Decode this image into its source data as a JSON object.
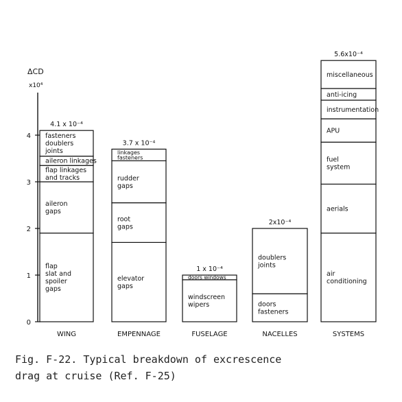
{
  "chart_data": {
    "type": "bar",
    "stacked": true,
    "ylabel": "ΔCD",
    "yunit": "x10⁴",
    "ylim": [
      0,
      6.0
    ],
    "yticks": [
      "0",
      "1",
      "2",
      "3",
      "4"
    ],
    "yticks_values": [
      0,
      1,
      2,
      3,
      4
    ],
    "categories": [
      "WING",
      "EMPENNAGE",
      "FUSELAGE",
      "NACELLES",
      "SYSTEMS"
    ],
    "totals": [
      "4.1 x 10⁻⁴",
      "3.7 x 10⁻⁴",
      "1 x 10⁻⁴",
      "2x10⁻⁴",
      "5.6x10⁻⁴"
    ],
    "bars": [
      {
        "category": "WING",
        "segments": [
          {
            "label": [
              "flap",
              "slat and",
              "spoiler",
              "gaps"
            ],
            "value": 1.9
          },
          {
            "label": [
              "aileron",
              "gaps"
            ],
            "value": 1.1
          },
          {
            "label": [
              "flap linkages",
              "and tracks"
            ],
            "value": 0.35
          },
          {
            "label": [
              "aileron linkages"
            ],
            "value": 0.2
          },
          {
            "label": [
              "fasteners",
              "doublers",
              "joints"
            ],
            "value": 0.55
          }
        ]
      },
      {
        "category": "EMPENNAGE",
        "segments": [
          {
            "label": [
              "elevator",
              "gaps"
            ],
            "value": 1.7
          },
          {
            "label": [
              "root",
              "gaps"
            ],
            "value": 0.85
          },
          {
            "label": [
              "rudder",
              "gaps"
            ],
            "value": 0.9
          },
          {
            "label": [
              "linkages",
              "fasteners"
            ],
            "value": 0.25
          }
        ]
      },
      {
        "category": "FUSELAGE",
        "segments": [
          {
            "label": [
              "windscreen",
              "wipers"
            ],
            "value": 0.9
          },
          {
            "label": [
              "doors windows"
            ],
            "value": 0.1
          }
        ]
      },
      {
        "category": "NACELLES",
        "segments": [
          {
            "label": [
              "doors",
              "fasteners"
            ],
            "value": 0.6
          },
          {
            "label": [
              "doublers",
              "joints"
            ],
            "value": 1.4
          }
        ]
      },
      {
        "category": "SYSTEMS",
        "segments": [
          {
            "label": [
              "air",
              "conditioning"
            ],
            "value": 1.9
          },
          {
            "label": [
              "aerials"
            ],
            "value": 1.05
          },
          {
            "label": [
              "fuel",
              "system"
            ],
            "value": 0.9
          },
          {
            "label": [
              "APU"
            ],
            "value": 0.5
          },
          {
            "label": [
              "instrumentation"
            ],
            "value": 0.4
          },
          {
            "label": [
              "anti-icing"
            ],
            "value": 0.25
          },
          {
            "label": [
              "miscellaneous"
            ],
            "value": 0.6
          }
        ]
      }
    ]
  },
  "caption": {
    "line1": "Fig. F-22. Typical breakdown of excrescence",
    "line2": "drag at cruise (Ref. F-25)"
  }
}
